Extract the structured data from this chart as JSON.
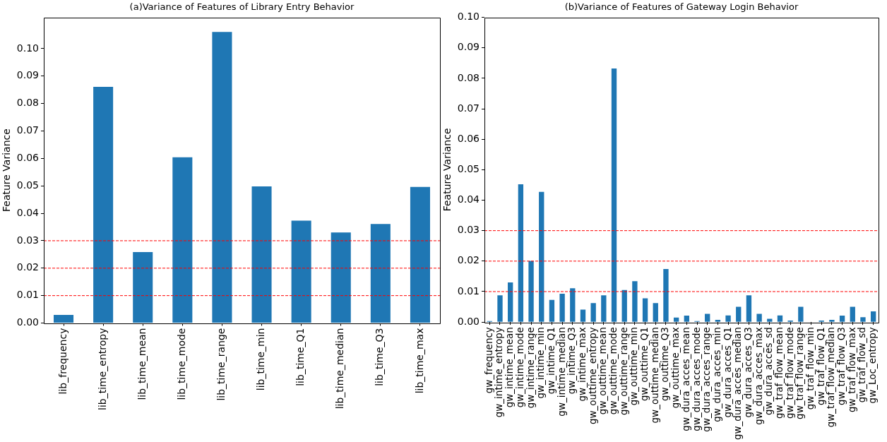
{
  "chart_data": [
    {
      "type": "bar",
      "title": "(a)Variance of Features of Library Entry Behavior",
      "ylabel": "Feature Variance",
      "categories": [
        "lib_frequency",
        "lib_time_entropy",
        "lib_time_mean",
        "lib_time_mode",
        "lib_time_range",
        "lib_time_min",
        "lib_time_Q1",
        "lib_time_median",
        "lib_time_Q3",
        "lib_time_max"
      ],
      "values": [
        0.003,
        0.0861,
        0.0259,
        0.0604,
        0.1061,
        0.0498,
        0.0373,
        0.033,
        0.0361,
        0.0496
      ],
      "color": "#1f77b4",
      "ylim": [
        0,
        0.1114
      ],
      "yticks": [
        {
          "value": 0,
          "label": "0.00"
        },
        {
          "value": 0.01,
          "label": "0.01"
        },
        {
          "value": 0.02,
          "label": "0.02"
        },
        {
          "value": 0.03,
          "label": "0.03"
        },
        {
          "value": 0.04,
          "label": "0.04"
        },
        {
          "value": 0.05,
          "label": "0.05"
        },
        {
          "value": 0.06,
          "label": "0.06"
        },
        {
          "value": 0.07,
          "label": "0.07"
        },
        {
          "value": 0.08,
          "label": "0.08"
        },
        {
          "value": 0.09,
          "label": "0.09"
        },
        {
          "value": 0.1,
          "label": "0.10"
        }
      ],
      "ref_lines": [
        {
          "axis": "y",
          "value": 0.01,
          "color": "#ff0000",
          "line_style": "dashed"
        },
        {
          "axis": "y",
          "value": 0.02,
          "color": "#ff0000",
          "line_style": "dashed"
        },
        {
          "axis": "y",
          "value": 0.03,
          "color": "#ff0000",
          "line_style": "dashed"
        }
      ]
    },
    {
      "type": "bar",
      "title": "(b)Variance of Features of Gateway Login Behavior",
      "ylabel": "Feature Variance",
      "categories": [
        "gw_frequency",
        "gw_intime_entropy",
        "gw_intime_mean",
        "gw_intime_mode",
        "gw_intime_range",
        "gw_intime_min",
        "gw_intime_Q1",
        "gw_intime_median",
        "gw_intime_Q3",
        "gw_intime_max",
        "gw_outtime_entropy",
        "gw_outtime_mean",
        "gw_outtime_mode",
        "gw_outtime_range",
        "gw_outtime_min",
        "gw_outtime_Q1",
        "gw_outtime_median",
        "gw_outtime_Q3",
        "gw_outtime_max",
        "gw_dura_acces_mean",
        "gw_dura_acces_mode",
        "gw_dura_acces_range",
        "gw_dura_acces_min",
        "gw_dura_acces_Q1",
        "gw_dura_acces_median",
        "gw_dura_acces_Q3",
        "gw_dura_acces_max",
        "gw_dura_acces_sd",
        "gw_traf_flow_mean",
        "gw_traf_flow_mode",
        "gw_traf_flow_range",
        "gw_traf_flow_min",
        "gw_traf_flow_Q1",
        "gw_traf_flow_median",
        "gw_traf_flow_Q3",
        "gw_traf_flow_max",
        "gw_traf_flow_sd",
        "gw_Loc_entropy"
      ],
      "values": [
        0.0003,
        0.0088,
        0.013,
        0.0452,
        0.0201,
        0.0427,
        0.0073,
        0.0093,
        0.0111,
        0.0041,
        0.0062,
        0.0088,
        0.0832,
        0.0105,
        0.0134,
        0.0078,
        0.0062,
        0.0174,
        0.0015,
        0.0021,
        0.0003,
        0.0027,
        0.0007,
        0.0022,
        0.005,
        0.0088,
        0.0027,
        0.0011,
        0.0022,
        0.0005,
        0.005,
        0,
        0.0005,
        0.0007,
        0.0021,
        0.005,
        0.0016,
        0.0035
      ],
      "color": "#1f77b4",
      "ylim": [
        0,
        0.1
      ],
      "yticks": [
        {
          "value": 0,
          "label": "0.00"
        },
        {
          "value": 0.01,
          "label": "0.01"
        },
        {
          "value": 0.02,
          "label": "0.02"
        },
        {
          "value": 0.03,
          "label": "0.03"
        },
        {
          "value": 0.04,
          "label": "0.04"
        },
        {
          "value": 0.05,
          "label": "0.05"
        },
        {
          "value": 0.06,
          "label": "0.06"
        },
        {
          "value": 0.07,
          "label": "0.07"
        },
        {
          "value": 0.08,
          "label": "0.08"
        },
        {
          "value": 0.09,
          "label": "0.09"
        },
        {
          "value": 0.1,
          "label": "0.10"
        }
      ],
      "ref_lines": [
        {
          "axis": "y",
          "value": 0.01,
          "color": "#ff0000",
          "line_style": "dashed"
        },
        {
          "axis": "y",
          "value": 0.02,
          "color": "#ff0000",
          "line_style": "dashed"
        },
        {
          "axis": "y",
          "value": 0.03,
          "color": "#ff0000",
          "line_style": "dashed"
        }
      ]
    }
  ]
}
